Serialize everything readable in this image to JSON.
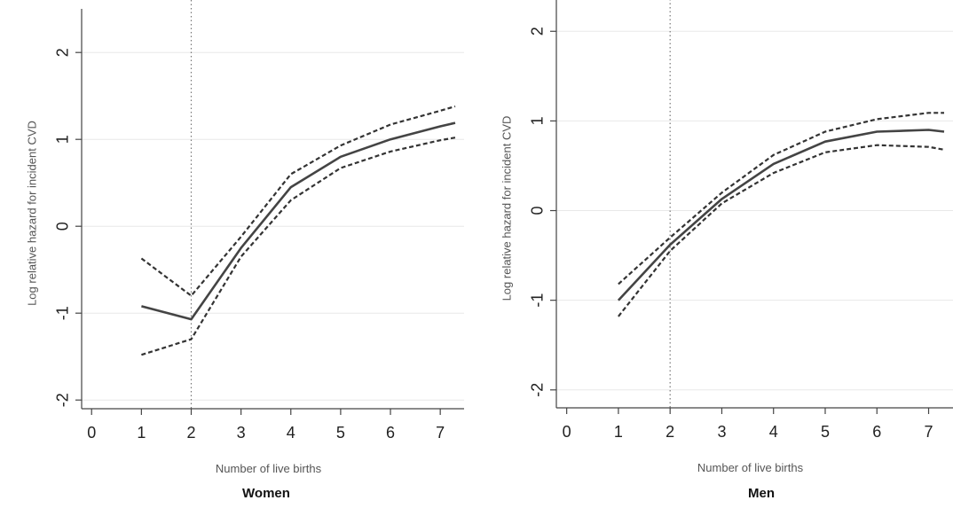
{
  "chart_data": [
    {
      "type": "line",
      "panel_title": "Women",
      "xlabel": "Number of live births",
      "ylabel": "Log relative hazard for incident CVD",
      "xlim": [
        -0.2,
        7.3
      ],
      "ylim": [
        -2.1,
        2.4
      ],
      "x_ticks": [
        "0",
        "1",
        "2",
        "3",
        "4",
        "5",
        "6",
        "7"
      ],
      "y_ticks": [
        "-2",
        "-1",
        "0",
        "1",
        "2"
      ],
      "grid": "horizontal",
      "reference_line_x": 2,
      "series": [
        {
          "style": "solid",
          "points": [
            [
              1,
              -0.92
            ],
            [
              2,
              -1.07
            ],
            [
              3,
              -0.25
            ],
            [
              4,
              0.45
            ],
            [
              5,
              0.8
            ],
            [
              6,
              1.0
            ],
            [
              7,
              1.15
            ],
            [
              7.3,
              1.19
            ]
          ]
        },
        {
          "style": "dashed",
          "points": [
            [
              1,
              -0.37
            ],
            [
              2,
              -0.8
            ],
            [
              3,
              -0.12
            ],
            [
              4,
              0.6
            ],
            [
              5,
              0.93
            ],
            [
              6,
              1.17
            ],
            [
              7,
              1.33
            ],
            [
              7.3,
              1.38
            ]
          ]
        },
        {
          "style": "dashed",
          "points": [
            [
              1,
              -1.48
            ],
            [
              2,
              -1.3
            ],
            [
              3,
              -0.35
            ],
            [
              4,
              0.3
            ],
            [
              5,
              0.67
            ],
            [
              6,
              0.86
            ],
            [
              7,
              0.99
            ],
            [
              7.3,
              1.02
            ]
          ]
        }
      ]
    },
    {
      "type": "line",
      "panel_title": "Men",
      "xlabel": "Number of live births",
      "ylabel": "Log relative hazard for incident CVD",
      "xlim": [
        -0.2,
        7.3
      ],
      "ylim": [
        -2.2,
        2.25
      ],
      "x_ticks": [
        "0",
        "1",
        "2",
        "3",
        "4",
        "5",
        "6",
        "7"
      ],
      "y_ticks": [
        "-2",
        "-1",
        "0",
        "1",
        "2"
      ],
      "grid": "horizontal",
      "reference_line_x": 2,
      "series": [
        {
          "style": "solid",
          "points": [
            [
              1,
              -1.0
            ],
            [
              2,
              -0.38
            ],
            [
              3,
              0.13
            ],
            [
              4,
              0.52
            ],
            [
              5,
              0.77
            ],
            [
              6,
              0.88
            ],
            [
              7,
              0.9
            ],
            [
              7.3,
              0.88
            ]
          ]
        },
        {
          "style": "dashed",
          "points": [
            [
              1,
              -0.82
            ],
            [
              2,
              -0.3
            ],
            [
              3,
              0.2
            ],
            [
              4,
              0.62
            ],
            [
              5,
              0.88
            ],
            [
              6,
              1.02
            ],
            [
              7,
              1.09
            ],
            [
              7.3,
              1.09
            ]
          ]
        },
        {
          "style": "dashed",
          "points": [
            [
              1,
              -1.18
            ],
            [
              2,
              -0.45
            ],
            [
              3,
              0.08
            ],
            [
              4,
              0.42
            ],
            [
              5,
              0.65
            ],
            [
              6,
              0.73
            ],
            [
              7,
              0.71
            ],
            [
              7.3,
              0.68
            ]
          ]
        }
      ]
    }
  ]
}
